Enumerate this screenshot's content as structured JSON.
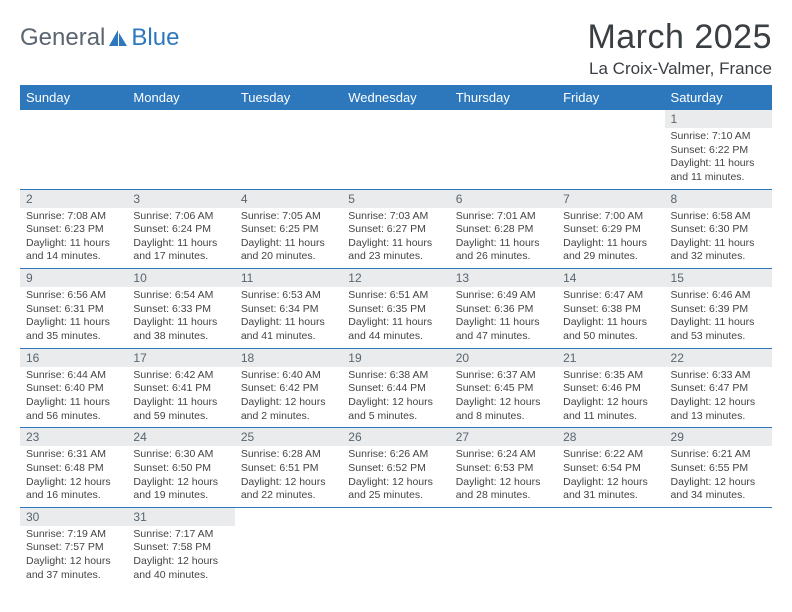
{
  "logo": {
    "text_general": "General",
    "text_blue": "Blue"
  },
  "title": "March 2025",
  "location": "La Croix-Valmer, France",
  "colors": {
    "header_bg": "#2d78bd",
    "header_text": "#ffffff",
    "daynum_bg": "#e9ebec",
    "daynum_text": "#5a6570",
    "border": "#2d78bd",
    "body_text": "#444444",
    "page_bg": "#ffffff"
  },
  "typography": {
    "title_fontsize": 34,
    "location_fontsize": 17,
    "dayhead_fontsize": 13,
    "daynum_fontsize": 12,
    "cell_fontsize": 10.5
  },
  "day_headers": [
    "Sunday",
    "Monday",
    "Tuesday",
    "Wednesday",
    "Thursday",
    "Friday",
    "Saturday"
  ],
  "weeks": [
    [
      null,
      null,
      null,
      null,
      null,
      null,
      {
        "n": "1",
        "sr": "Sunrise: 7:10 AM",
        "ss": "Sunset: 6:22 PM",
        "dl": "Daylight: 11 hours and 11 minutes."
      }
    ],
    [
      {
        "n": "2",
        "sr": "Sunrise: 7:08 AM",
        "ss": "Sunset: 6:23 PM",
        "dl": "Daylight: 11 hours and 14 minutes."
      },
      {
        "n": "3",
        "sr": "Sunrise: 7:06 AM",
        "ss": "Sunset: 6:24 PM",
        "dl": "Daylight: 11 hours and 17 minutes."
      },
      {
        "n": "4",
        "sr": "Sunrise: 7:05 AM",
        "ss": "Sunset: 6:25 PM",
        "dl": "Daylight: 11 hours and 20 minutes."
      },
      {
        "n": "5",
        "sr": "Sunrise: 7:03 AM",
        "ss": "Sunset: 6:27 PM",
        "dl": "Daylight: 11 hours and 23 minutes."
      },
      {
        "n": "6",
        "sr": "Sunrise: 7:01 AM",
        "ss": "Sunset: 6:28 PM",
        "dl": "Daylight: 11 hours and 26 minutes."
      },
      {
        "n": "7",
        "sr": "Sunrise: 7:00 AM",
        "ss": "Sunset: 6:29 PM",
        "dl": "Daylight: 11 hours and 29 minutes."
      },
      {
        "n": "8",
        "sr": "Sunrise: 6:58 AM",
        "ss": "Sunset: 6:30 PM",
        "dl": "Daylight: 11 hours and 32 minutes."
      }
    ],
    [
      {
        "n": "9",
        "sr": "Sunrise: 6:56 AM",
        "ss": "Sunset: 6:31 PM",
        "dl": "Daylight: 11 hours and 35 minutes."
      },
      {
        "n": "10",
        "sr": "Sunrise: 6:54 AM",
        "ss": "Sunset: 6:33 PM",
        "dl": "Daylight: 11 hours and 38 minutes."
      },
      {
        "n": "11",
        "sr": "Sunrise: 6:53 AM",
        "ss": "Sunset: 6:34 PM",
        "dl": "Daylight: 11 hours and 41 minutes."
      },
      {
        "n": "12",
        "sr": "Sunrise: 6:51 AM",
        "ss": "Sunset: 6:35 PM",
        "dl": "Daylight: 11 hours and 44 minutes."
      },
      {
        "n": "13",
        "sr": "Sunrise: 6:49 AM",
        "ss": "Sunset: 6:36 PM",
        "dl": "Daylight: 11 hours and 47 minutes."
      },
      {
        "n": "14",
        "sr": "Sunrise: 6:47 AM",
        "ss": "Sunset: 6:38 PM",
        "dl": "Daylight: 11 hours and 50 minutes."
      },
      {
        "n": "15",
        "sr": "Sunrise: 6:46 AM",
        "ss": "Sunset: 6:39 PM",
        "dl": "Daylight: 11 hours and 53 minutes."
      }
    ],
    [
      {
        "n": "16",
        "sr": "Sunrise: 6:44 AM",
        "ss": "Sunset: 6:40 PM",
        "dl": "Daylight: 11 hours and 56 minutes."
      },
      {
        "n": "17",
        "sr": "Sunrise: 6:42 AM",
        "ss": "Sunset: 6:41 PM",
        "dl": "Daylight: 11 hours and 59 minutes."
      },
      {
        "n": "18",
        "sr": "Sunrise: 6:40 AM",
        "ss": "Sunset: 6:42 PM",
        "dl": "Daylight: 12 hours and 2 minutes."
      },
      {
        "n": "19",
        "sr": "Sunrise: 6:38 AM",
        "ss": "Sunset: 6:44 PM",
        "dl": "Daylight: 12 hours and 5 minutes."
      },
      {
        "n": "20",
        "sr": "Sunrise: 6:37 AM",
        "ss": "Sunset: 6:45 PM",
        "dl": "Daylight: 12 hours and 8 minutes."
      },
      {
        "n": "21",
        "sr": "Sunrise: 6:35 AM",
        "ss": "Sunset: 6:46 PM",
        "dl": "Daylight: 12 hours and 11 minutes."
      },
      {
        "n": "22",
        "sr": "Sunrise: 6:33 AM",
        "ss": "Sunset: 6:47 PM",
        "dl": "Daylight: 12 hours and 13 minutes."
      }
    ],
    [
      {
        "n": "23",
        "sr": "Sunrise: 6:31 AM",
        "ss": "Sunset: 6:48 PM",
        "dl": "Daylight: 12 hours and 16 minutes."
      },
      {
        "n": "24",
        "sr": "Sunrise: 6:30 AM",
        "ss": "Sunset: 6:50 PM",
        "dl": "Daylight: 12 hours and 19 minutes."
      },
      {
        "n": "25",
        "sr": "Sunrise: 6:28 AM",
        "ss": "Sunset: 6:51 PM",
        "dl": "Daylight: 12 hours and 22 minutes."
      },
      {
        "n": "26",
        "sr": "Sunrise: 6:26 AM",
        "ss": "Sunset: 6:52 PM",
        "dl": "Daylight: 12 hours and 25 minutes."
      },
      {
        "n": "27",
        "sr": "Sunrise: 6:24 AM",
        "ss": "Sunset: 6:53 PM",
        "dl": "Daylight: 12 hours and 28 minutes."
      },
      {
        "n": "28",
        "sr": "Sunrise: 6:22 AM",
        "ss": "Sunset: 6:54 PM",
        "dl": "Daylight: 12 hours and 31 minutes."
      },
      {
        "n": "29",
        "sr": "Sunrise: 6:21 AM",
        "ss": "Sunset: 6:55 PM",
        "dl": "Daylight: 12 hours and 34 minutes."
      }
    ],
    [
      {
        "n": "30",
        "sr": "Sunrise: 7:19 AM",
        "ss": "Sunset: 7:57 PM",
        "dl": "Daylight: 12 hours and 37 minutes."
      },
      {
        "n": "31",
        "sr": "Sunrise: 7:17 AM",
        "ss": "Sunset: 7:58 PM",
        "dl": "Daylight: 12 hours and 40 minutes."
      },
      null,
      null,
      null,
      null,
      null
    ]
  ]
}
